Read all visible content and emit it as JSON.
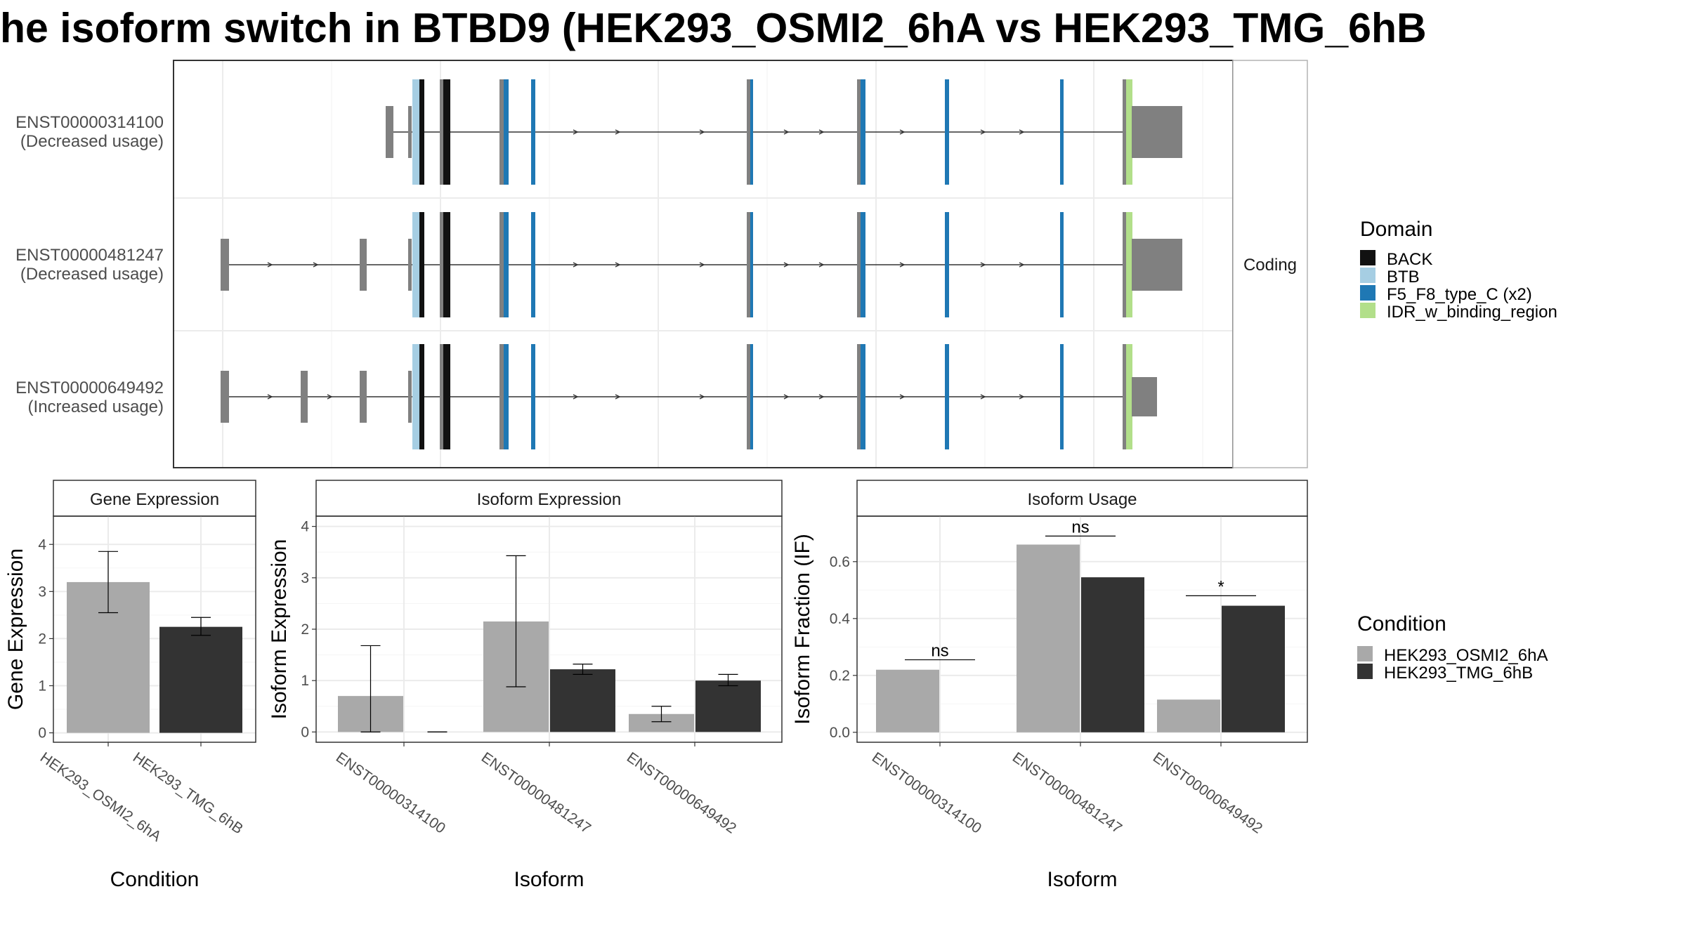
{
  "title": "he isoform switch in BTBD9 (HEK293_OSMI2_6hA vs HEK293_TMG_6hB",
  "colors": {
    "BACK": "#111111",
    "BTB": "#a6cee3",
    "F5_F8_type_C (x2)": "#1f78b4",
    "IDR_w_binding_region": "#b2df8a",
    "utr": "#808080",
    "cond1": "#a9a9a9",
    "cond2": "#333333"
  },
  "structure": {
    "strip_label": "Coding",
    "transcripts": [
      {
        "id": "ENST00000314100",
        "usage": "(Decreased usage)"
      },
      {
        "id": "ENST00000481247",
        "usage": "(Decreased usage)"
      },
      {
        "id": "ENST00000649492",
        "usage": "(Increased usage)"
      }
    ]
  },
  "domain_legend": {
    "title": "Domain",
    "items": [
      "BACK",
      "BTB",
      "F5_F8_type_C (x2)",
      "IDR_w_binding_region"
    ]
  },
  "condition_legend": {
    "title": "Condition",
    "items": [
      "HEK293_OSMI2_6hA",
      "HEK293_TMG_6hB"
    ]
  },
  "chart_data": [
    {
      "type": "bar",
      "title": "Gene Expression",
      "xlabel": "Condition",
      "ylabel": "Gene Expression",
      "ylim": [
        -0.2,
        4.6
      ],
      "yticks": [
        0,
        1,
        2,
        3,
        4
      ],
      "categories": [
        "HEK293_OSMI2_6hA",
        "HEK293_TMG_6hB"
      ],
      "series": [
        {
          "name": "HEK293_OSMI2_6hA",
          "values": [
            3.2,
            null
          ],
          "err_low": [
            2.55,
            null
          ],
          "err_high": [
            3.85,
            null
          ]
        },
        {
          "name": "HEK293_TMG_6hB",
          "values": [
            null,
            2.25
          ],
          "err_low": [
            null,
            2.07
          ],
          "err_high": [
            null,
            2.45
          ]
        }
      ]
    },
    {
      "type": "bar",
      "title": "Isoform Expression",
      "xlabel": "Isoform",
      "ylabel": "Isoform Expression",
      "ylim": [
        -0.2,
        4.2
      ],
      "yticks": [
        0,
        1,
        2,
        3,
        4
      ],
      "categories": [
        "ENST00000314100",
        "ENST00000481247",
        "ENST00000649492"
      ],
      "series": [
        {
          "name": "HEK293_OSMI2_6hA",
          "values": [
            0.7,
            2.15,
            0.35
          ],
          "err_low": [
            0.0,
            0.88,
            0.2
          ],
          "err_high": [
            1.68,
            3.43,
            0.5
          ]
        },
        {
          "name": "HEK293_TMG_6hB",
          "values": [
            0.0,
            1.22,
            1.0
          ],
          "err_low": [
            0.0,
            1.12,
            0.9
          ],
          "err_high": [
            0.0,
            1.32,
            1.12
          ]
        }
      ]
    },
    {
      "type": "bar",
      "title": "Isoform Usage",
      "xlabel": "Isoform",
      "ylabel": "Isoform Fraction (IF)",
      "ylim": [
        -0.035,
        0.76
      ],
      "yticks": [
        0.0,
        0.2,
        0.4,
        0.6
      ],
      "ytick_labels": [
        "0.0",
        "0.2",
        "0.4",
        "0.6"
      ],
      "categories": [
        "ENST00000314100",
        "ENST00000481247",
        "ENST00000649492"
      ],
      "series": [
        {
          "name": "HEK293_OSMI2_6hA",
          "values": [
            0.22,
            0.66,
            0.115
          ]
        },
        {
          "name": "HEK293_TMG_6hB",
          "values": [
            0.0,
            0.545,
            0.445
          ]
        }
      ],
      "significance": [
        "ns",
        "ns",
        "*"
      ],
      "sig_y": [
        0.255,
        0.69,
        0.48
      ]
    }
  ]
}
